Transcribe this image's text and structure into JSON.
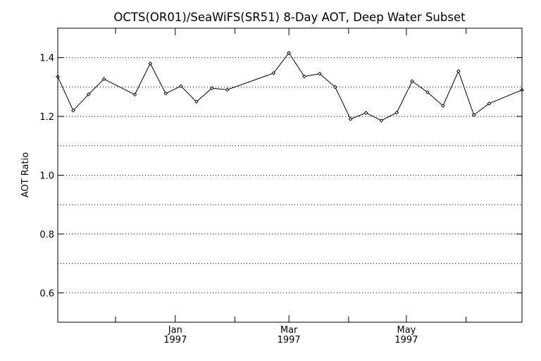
{
  "chart_data": {
    "type": "line",
    "title": "OCTS(OR01)/SeaWiFS(SR51) 8-Day AOT, Deep Water Subset",
    "xlabel": "",
    "ylabel": "AOT Ratio",
    "ylim": [
      0.5,
      1.5
    ],
    "y_ticks": [
      0.6,
      0.8,
      1.0,
      1.2,
      1.4
    ],
    "y_tick_labels": [
      "0.6",
      "0.8",
      "1.0",
      "1.2",
      "1.4"
    ],
    "y_gridlines": [
      0.6,
      0.7,
      0.8,
      0.9,
      1.0,
      1.1,
      1.2,
      1.3,
      1.4
    ],
    "grid": "horizontal dotted",
    "xlim": [
      "1996-11-01",
      "1997-06-30"
    ],
    "x_major_ticks": [
      {
        "date": "1997-01-01",
        "month": "Jan",
        "year": "1997"
      },
      {
        "date": "1997-03-01",
        "month": "Mar",
        "year": "1997"
      },
      {
        "date": "1997-05-01",
        "month": "May",
        "year": "1997"
      }
    ],
    "x_minor_ticks": [
      "1996-12-01",
      "1997-02-01",
      "1997-04-01",
      "1997-06-01"
    ],
    "series": [
      {
        "marker": "diamond",
        "color": "#000000",
        "points": [
          {
            "x": "1996-11-01",
            "y": 1.335
          },
          {
            "x": "1996-11-09",
            "y": 1.22
          },
          {
            "x": "1996-11-17",
            "y": 1.275
          },
          {
            "x": "1996-11-25",
            "y": 1.327
          },
          {
            "x": "1996-12-11",
            "y": 1.274
          },
          {
            "x": "1996-12-19",
            "y": 1.38
          },
          {
            "x": "1996-12-27",
            "y": 1.278
          },
          {
            "x": "1997-01-04",
            "y": 1.303
          },
          {
            "x": "1997-01-12",
            "y": 1.25
          },
          {
            "x": "1997-01-20",
            "y": 1.296
          },
          {
            "x": "1997-01-28",
            "y": 1.291
          },
          {
            "x": "1997-02-21",
            "y": 1.347
          },
          {
            "x": "1997-03-01",
            "y": 1.416
          },
          {
            "x": "1997-03-09",
            "y": 1.336
          },
          {
            "x": "1997-03-17",
            "y": 1.345
          },
          {
            "x": "1997-03-25",
            "y": 1.3
          },
          {
            "x": "1997-04-02",
            "y": 1.191
          },
          {
            "x": "1997-04-10",
            "y": 1.212
          },
          {
            "x": "1997-04-18",
            "y": 1.186
          },
          {
            "x": "1997-04-26",
            "y": 1.213
          },
          {
            "x": "1997-05-04",
            "y": 1.32
          },
          {
            "x": "1997-05-12",
            "y": 1.282
          },
          {
            "x": "1997-05-20",
            "y": 1.236
          },
          {
            "x": "1997-05-28",
            "y": 1.354
          },
          {
            "x": "1997-06-05",
            "y": 1.205
          },
          {
            "x": "1997-06-13",
            "y": 1.244
          },
          {
            "x": "1997-06-30",
            "y": 1.29
          }
        ]
      }
    ]
  }
}
